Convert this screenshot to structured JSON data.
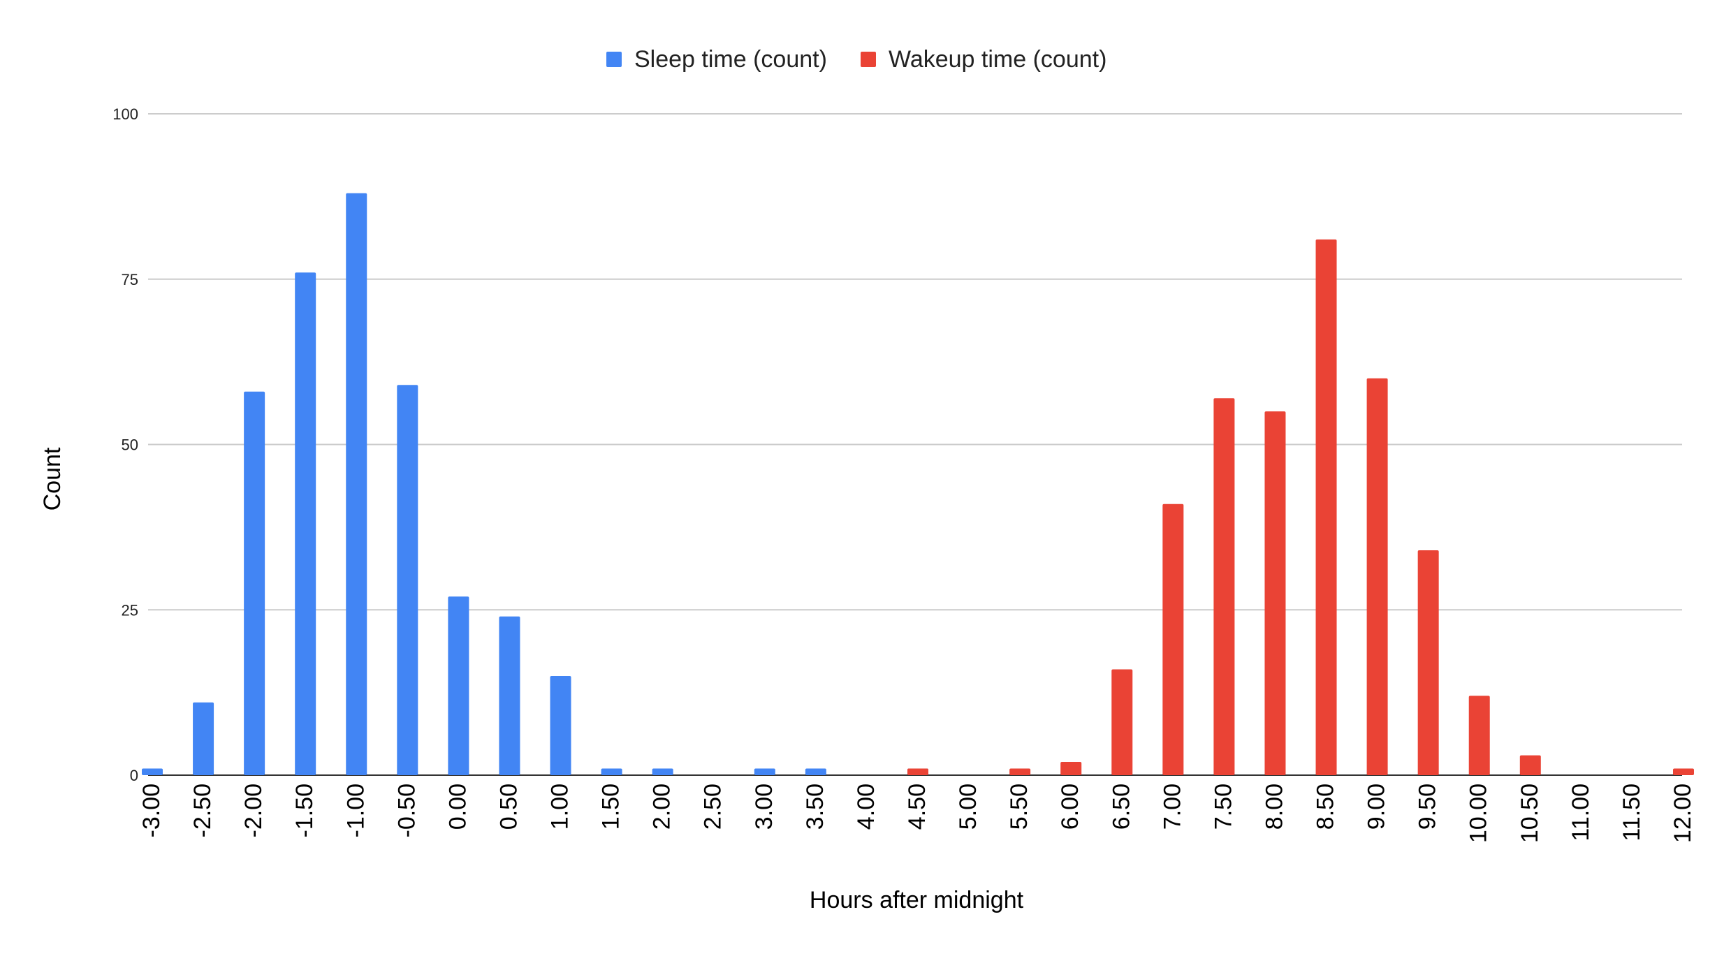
{
  "chart_data": {
    "type": "bar",
    "title": "",
    "xlabel": "Hours after midnight",
    "ylabel": "Count",
    "ylim": [
      0,
      100
    ],
    "yticks": [
      "0",
      "25",
      "50",
      "75",
      "100"
    ],
    "grid": true,
    "legend_position": "top-center",
    "categories": [
      "-3.00",
      "-2.50",
      "-2.00",
      "-1.50",
      "-1.00",
      "-0.50",
      "0.00",
      "0.50",
      "1.00",
      "1.50",
      "2.00",
      "2.50",
      "3.00",
      "3.50",
      "4.00",
      "4.50",
      "5.00",
      "5.50",
      "6.00",
      "6.50",
      "7.00",
      "7.50",
      "8.00",
      "8.50",
      "9.00",
      "9.50",
      "10.00",
      "10.50",
      "11.00",
      "11.50",
      "12.00"
    ],
    "series": [
      {
        "name": "Sleep time (count)",
        "color": "#4285f4",
        "values": [
          1,
          11,
          58,
          76,
          88,
          59,
          27,
          24,
          15,
          1,
          1,
          0,
          1,
          1,
          0,
          1,
          0,
          0,
          0,
          0,
          0,
          0,
          0,
          0,
          0,
          0,
          0,
          0,
          0,
          0,
          0
        ]
      },
      {
        "name": "Wakeup time (count)",
        "color": "#ea4335",
        "values": [
          0,
          0,
          0,
          0,
          0,
          0,
          0,
          0,
          0,
          0,
          0,
          0,
          0,
          0,
          0,
          1,
          0,
          1,
          2,
          16,
          41,
          57,
          55,
          81,
          60,
          34,
          12,
          3,
          0,
          0,
          1
        ]
      }
    ]
  }
}
